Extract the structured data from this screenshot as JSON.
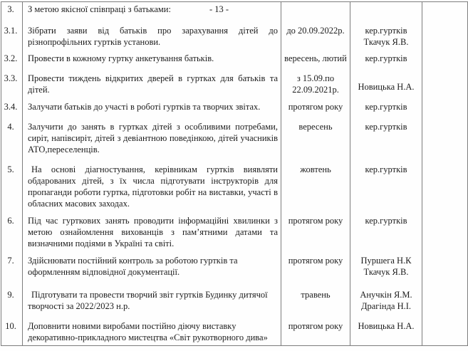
{
  "page": {
    "page_number": "- 13 -"
  },
  "table": {
    "rows": [
      {
        "num": "3.",
        "task": "З метою якісної співпраці з батьками:",
        "page_marker": "- 13 -",
        "term": "",
        "responsible": ""
      },
      {
        "num": "3.1.",
        "task": "Зібрати заяви від батьків про зарахування дітей до різнопрофільних гуртків установи.",
        "term": "до 20.09.2022р.",
        "responsible": "кер.гуртків\nТкачук Я.В."
      },
      {
        "num": "3.2.",
        "task": "Провести в кожному гуртку анкетування батьків.",
        "term": "вересень, лютий",
        "responsible": "кер.гуртків"
      },
      {
        "num": "3.3.",
        "task": "Провести тиждень відкритих дверей в гуртках для батьків та дітей.",
        "term": "з 15.09.по\n22.09.2021р.",
        "responsible": "Новицька Н.А."
      },
      {
        "num": "3.4.",
        "task": "Залучати батьків до участі в роботі гуртків та творчих звітах.",
        "term": "протягом року",
        "responsible": "кер.гуртків"
      },
      {
        "num": "4.",
        "task": "Залучити до занять в гуртках дітей з особливими потребами, сиріт, напівсиріт, дітей з девіантною поведінкою, дітей учасників АТО,переселенців.",
        "term": "вересень",
        "responsible": "кер.гуртків"
      },
      {
        "num": "5.",
        "task": "На основі діагностування, керівникам гуртків виявляти обдарованих дітей, з їх числа підготувати інструкторів для пропаганди роботи гуртка, підготовки робіт на виставки, участі в обласних масових заходах.",
        "term": "жовтень",
        "responsible": "кер.гуртків"
      },
      {
        "num": "6.",
        "task": "Під час гурткових занять проводити інформаційні хвилинки з метою ознайомлення вихованців з пам’ятними датами та визначними подіями в Україні та світі.",
        "term": "протягом року",
        "responsible": "кер.гуртків"
      },
      {
        "num": "7.",
        "task": "Здійснювати постійний контроль за роботою гуртків  та\nоформленням відповідної документації.",
        "term": "протягом року",
        "responsible": "Пуршега Н.К\nТкачук Я.В."
      },
      {
        "num": "9.",
        "task": "Підготувати та провести творчий звіт гуртків Будинку дитячої\nтворчості за 2022/2023 н.р.",
        "term": "травень",
        "responsible": "Анучкін Я.М.\nДрагінда Н.І."
      },
      {
        "num": "10.",
        "task": "Доповнити новими виробами постійно діючу виставку\nдекоративно-прикладного мистецтва «Світ рукотворного дива»",
        "term": "протягом року",
        "responsible": "Новицька Н.А."
      }
    ]
  }
}
